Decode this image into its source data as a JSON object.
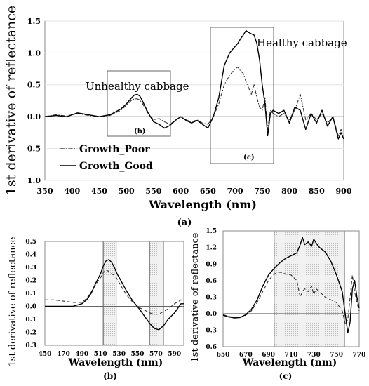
{
  "chart_data": [
    {
      "id": "a",
      "type": "line",
      "panel_label": "(a)",
      "xlabel": "Wavelength (nm)",
      "ylabel": "1st derivative of reflectance",
      "xlim": [
        350,
        900
      ],
      "ylim": [
        -1.0,
        1.5
      ],
      "xticks": [
        "350",
        "400",
        "450",
        "500",
        "550",
        "600",
        "650",
        "700",
        "750",
        "800",
        "850",
        "900"
      ],
      "yticks": [
        {
          "v": 1.5,
          "label": "1.5"
        },
        {
          "v": 1.0,
          "label": "1.0"
        },
        {
          "v": 0.5,
          "label": "0.5"
        },
        {
          "v": 0.0,
          "label": "0.0"
        },
        {
          "v": -0.5,
          "label": "0.5"
        },
        {
          "v": -1.0,
          "label": "1.0"
        }
      ],
      "annotations": {
        "unhealthy": "Unhealthy cabbage",
        "healthy": "Healthy cabbage",
        "box_b": "(b)",
        "box_c": "(c)"
      },
      "legend": {
        "placement": "bottom-left",
        "entries": [
          "Growth_Poor",
          "Growth_Good"
        ]
      },
      "series": [
        {
          "name": "Growth_Poor",
          "style": "dashdot",
          "x": [
            350,
            370,
            390,
            410,
            430,
            450,
            470,
            490,
            500,
            510,
            515,
            520,
            525,
            530,
            540,
            550,
            560,
            570,
            580,
            590,
            600,
            610,
            620,
            630,
            640,
            650,
            660,
            670,
            680,
            690,
            700,
            705,
            710,
            715,
            720,
            725,
            730,
            735,
            740,
            745,
            750,
            755,
            760,
            765,
            770,
            780,
            790,
            800,
            810,
            820,
            830,
            840,
            850,
            860,
            870,
            880,
            890,
            895,
            900
          ],
          "y": [
            0.0,
            0.03,
            0.01,
            0.05,
            0.02,
            0.0,
            0.02,
            0.1,
            0.18,
            0.26,
            0.28,
            0.28,
            0.26,
            0.2,
            0.05,
            -0.05,
            -0.03,
            -0.08,
            -0.12,
            -0.06,
            0.0,
            -0.05,
            -0.08,
            -0.05,
            -0.1,
            -0.12,
            0.0,
            0.2,
            0.5,
            0.65,
            0.75,
            0.78,
            0.72,
            0.68,
            0.55,
            0.45,
            0.35,
            0.5,
            0.3,
            0.15,
            0.1,
            0.3,
            -0.2,
            0.1,
            0.05,
            0.0,
            0.05,
            -0.05,
            0.1,
            0.35,
            -0.05,
            0.05,
            -0.05,
            0.05,
            -0.1,
            0.0,
            -0.3,
            -0.2,
            -0.3
          ]
        },
        {
          "name": "Growth_Good",
          "style": "solid",
          "x": [
            350,
            370,
            390,
            410,
            430,
            450,
            470,
            490,
            500,
            510,
            515,
            520,
            525,
            530,
            540,
            550,
            560,
            570,
            580,
            590,
            600,
            610,
            620,
            630,
            640,
            650,
            660,
            670,
            680,
            690,
            700,
            705,
            710,
            715,
            720,
            725,
            730,
            735,
            740,
            745,
            750,
            755,
            760,
            765,
            770,
            780,
            790,
            800,
            810,
            820,
            830,
            840,
            850,
            860,
            870,
            880,
            890,
            895,
            900
          ],
          "y": [
            0.0,
            0.02,
            0.0,
            0.06,
            0.03,
            0.0,
            0.03,
            0.12,
            0.2,
            0.3,
            0.34,
            0.35,
            0.32,
            0.24,
            0.06,
            -0.08,
            -0.12,
            -0.18,
            -0.14,
            -0.06,
            0.0,
            -0.06,
            -0.1,
            -0.06,
            -0.12,
            -0.18,
            0.0,
            0.3,
            0.8,
            1.0,
            1.1,
            1.15,
            1.22,
            1.28,
            1.35,
            1.32,
            1.3,
            1.28,
            1.15,
            0.9,
            0.5,
            0.2,
            -0.3,
            0.05,
            0.1,
            0.05,
            0.1,
            -0.1,
            0.15,
            0.1,
            -0.2,
            0.05,
            -0.1,
            0.1,
            -0.15,
            0.0,
            -0.35,
            -0.25,
            -0.35
          ]
        }
      ]
    },
    {
      "id": "b",
      "type": "line",
      "panel_label": "(b)",
      "xlabel": "Wavelength (nm)",
      "ylabel": "1st derivative of reflectance",
      "xlim": [
        450,
        600
      ],
      "ylim": [
        -0.3,
        0.5
      ],
      "xticks": [
        "450",
        "470",
        "490",
        "510",
        "530",
        "550",
        "570",
        "590"
      ],
      "yticks": [
        {
          "v": 0.5,
          "label": "0.5"
        },
        {
          "v": 0.4,
          "label": "0.4"
        },
        {
          "v": 0.3,
          "label": "0.3"
        },
        {
          "v": 0.2,
          "label": "0.2"
        },
        {
          "v": 0.1,
          "label": "0.1"
        },
        {
          "v": 0.0,
          "label": "0.0"
        },
        {
          "v": -0.1,
          "label": "0.1"
        },
        {
          "v": -0.2,
          "label": "0.2"
        },
        {
          "v": -0.3,
          "label": "0.3"
        }
      ],
      "shaded": [
        [
          513,
          527
        ],
        [
          563,
          578
        ]
      ],
      "series": [
        {
          "name": "Growth_Poor",
          "style": "dashed",
          "x": [
            450,
            460,
            470,
            480,
            490,
            495,
            500,
            505,
            510,
            513,
            516,
            519,
            522,
            525,
            528,
            532,
            538,
            545,
            552,
            558,
            563,
            568,
            573,
            578,
            583,
            590,
            597,
            600
          ],
          "y": [
            0.05,
            0.05,
            0.04,
            0.03,
            0.03,
            0.06,
            0.11,
            0.17,
            0.22,
            0.26,
            0.28,
            0.27,
            0.25,
            0.24,
            0.21,
            0.16,
            0.09,
            0.03,
            -0.01,
            -0.03,
            -0.05,
            -0.06,
            -0.06,
            -0.04,
            -0.02,
            0.02,
            0.05,
            0.04
          ]
        },
        {
          "name": "Growth_Good",
          "style": "solid",
          "x": [
            450,
            460,
            470,
            480,
            490,
            495,
            500,
            505,
            510,
            513,
            516,
            519,
            522,
            525,
            528,
            532,
            538,
            545,
            552,
            558,
            563,
            568,
            573,
            578,
            583,
            590,
            597,
            600
          ],
          "y": [
            0.0,
            0.0,
            0.0,
            0.0,
            0.02,
            0.05,
            0.1,
            0.18,
            0.25,
            0.31,
            0.35,
            0.36,
            0.34,
            0.3,
            0.25,
            0.2,
            0.12,
            0.04,
            -0.02,
            -0.08,
            -0.13,
            -0.17,
            -0.18,
            -0.15,
            -0.1,
            -0.05,
            0.02,
            0.02
          ]
        }
      ]
    },
    {
      "id": "c",
      "type": "line",
      "panel_label": "(c)",
      "xlabel": "Wavelength (nm)",
      "ylabel": "1st derivative of reflectance",
      "xlim": [
        650,
        770
      ],
      "ylim": [
        -0.6,
        1.5
      ],
      "xticks": [
        "650",
        "670",
        "690",
        "710",
        "730",
        "750",
        "770"
      ],
      "yticks": [
        {
          "v": 1.5,
          "label": "1.5"
        },
        {
          "v": 1.2,
          "label": "1.2"
        },
        {
          "v": 0.9,
          "label": "0.9"
        },
        {
          "v": 0.6,
          "label": "0.6"
        },
        {
          "v": 0.3,
          "label": "0.3"
        },
        {
          "v": 0.0,
          "label": "0.0"
        },
        {
          "v": -0.3,
          "label": "0.3"
        },
        {
          "v": -0.6,
          "label": "0.6"
        }
      ],
      "shaded": [
        [
          695,
          757
        ]
      ],
      "series": [
        {
          "name": "Growth_Poor",
          "style": "dashed",
          "x": [
            650,
            655,
            660,
            665,
            670,
            675,
            680,
            685,
            690,
            695,
            700,
            705,
            710,
            715,
            718,
            720,
            722,
            725,
            728,
            730,
            732,
            735,
            740,
            745,
            750,
            755,
            758,
            760,
            762,
            764,
            766,
            768,
            770
          ],
          "y": [
            -0.02,
            -0.05,
            -0.07,
            -0.07,
            -0.03,
            0.05,
            0.2,
            0.4,
            0.6,
            0.72,
            0.75,
            0.72,
            0.7,
            0.6,
            0.3,
            0.4,
            0.45,
            0.4,
            0.5,
            0.35,
            0.45,
            0.4,
            0.3,
            0.25,
            0.2,
            0.05,
            -0.2,
            -0.1,
            0.3,
            0.7,
            0.4,
            0.2,
            0.05
          ]
        },
        {
          "name": "Growth_Good",
          "style": "solid",
          "x": [
            650,
            655,
            660,
            665,
            670,
            675,
            680,
            685,
            690,
            695,
            700,
            705,
            710,
            715,
            718,
            720,
            722,
            725,
            728,
            730,
            732,
            735,
            740,
            745,
            750,
            755,
            758,
            760,
            762,
            764,
            766,
            768,
            770
          ],
          "y": [
            -0.03,
            -0.06,
            -0.08,
            -0.07,
            -0.02,
            0.08,
            0.25,
            0.5,
            0.7,
            0.82,
            0.92,
            1.0,
            1.05,
            1.1,
            1.25,
            1.38,
            1.25,
            1.3,
            1.22,
            1.35,
            1.28,
            1.2,
            1.12,
            0.95,
            0.7,
            0.4,
            -0.05,
            -0.35,
            -0.15,
            0.45,
            0.6,
            0.3,
            0.1
          ]
        }
      ]
    }
  ]
}
